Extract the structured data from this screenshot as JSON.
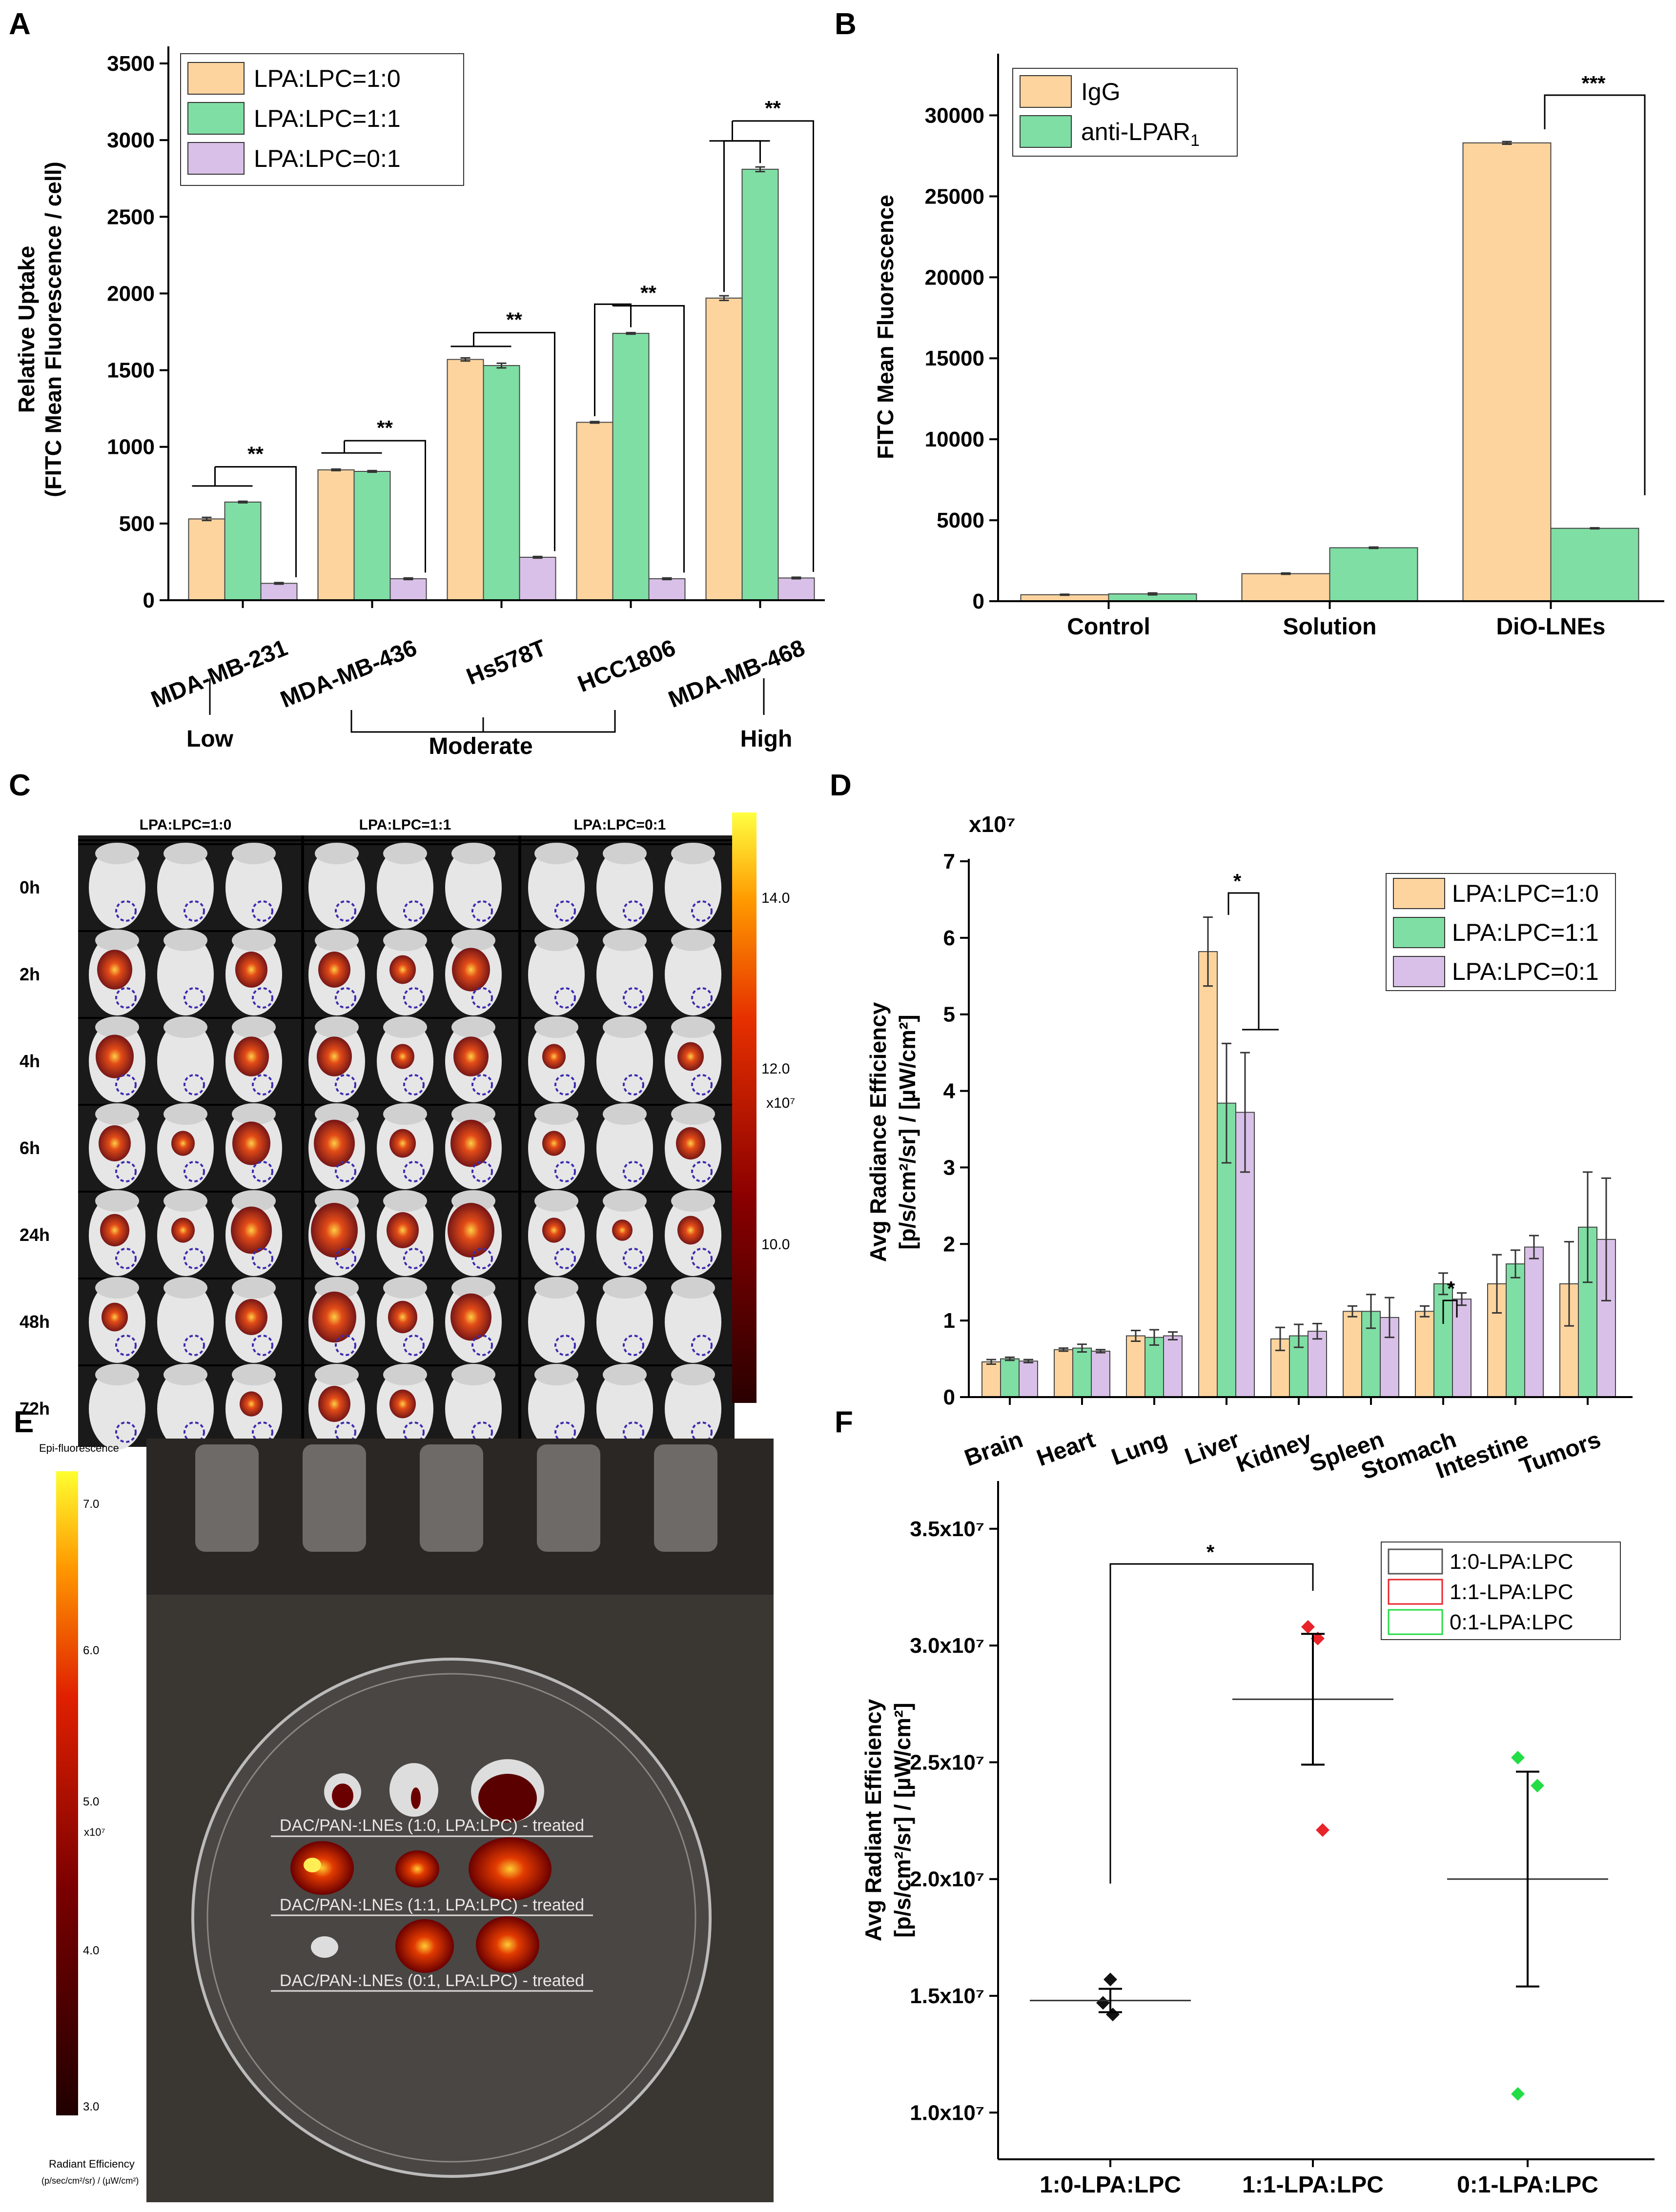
{
  "colors": {
    "orange": "#fdd49e",
    "green": "#7fdea4",
    "purple": "#d9c0e8",
    "black": "#000000",
    "red_marker": "#e8232a",
    "green_marker": "#22dd44"
  },
  "panels": {
    "A": {
      "label": "A"
    },
    "B": {
      "label": "B"
    },
    "C": {
      "label": "C",
      "groups": [
        "LPA:LPC=1:0",
        "LPA:LPC=1:1",
        "LPA:LPC=0:1"
      ],
      "times": [
        "0h",
        "2h",
        "4h",
        "6h",
        "24h",
        "48h",
        "72h"
      ],
      "scale_ticks": [
        "14.0",
        "12.0",
        "10.0"
      ],
      "scale_unit": "x10⁷"
    },
    "D": {
      "label": "D",
      "multiplier": "x10⁷"
    },
    "E": {
      "label": "E",
      "scale_title": "Epi-fluorescence",
      "scale_ticks": [
        "7.0",
        "6.0",
        "5.0",
        "4.0",
        "3.0"
      ],
      "scale_unit": "x10⁷",
      "scale_bottom_label": "Radiant Efficiency",
      "scale_bottom_units": "(p/sec/cm²/sr) / (µW/cm²)",
      "row_labels": [
        "DAC/PAN-:LNEs (1:0, LPA:LPC) - treated",
        "DAC/PAN-:LNEs (1:1, LPA:LPC) - treated",
        "DAC/PAN-:LNEs (0:1, LPA:LPC) - treated"
      ]
    },
    "F": {
      "label": "F"
    }
  },
  "chart_data": [
    {
      "id": "A",
      "type": "bar",
      "title": "",
      "ylabel_line1": "Relative Uptake",
      "ylabel_line2": "(FITC Mean Fluorescence / cell)",
      "ylim": [
        0,
        3500
      ],
      "yticks": [
        0,
        500,
        1000,
        1500,
        2000,
        2500,
        3000,
        3500
      ],
      "categories": [
        "MDA-MB-231",
        "MDA-MB-436",
        "Hs578T",
        "HCC1806",
        "MDA-MB-468"
      ],
      "series": [
        {
          "name": "LPA:LPC=1:0",
          "values": [
            530,
            850,
            1570,
            1160,
            1970
          ],
          "errors": [
            10,
            5,
            10,
            5,
            15
          ]
        },
        {
          "name": "LPA:LPC=1:1",
          "values": [
            640,
            840,
            1530,
            1740,
            2810
          ],
          "errors": [
            5,
            5,
            15,
            5,
            15
          ]
        },
        {
          "name": "LPA:LPC=0:1",
          "values": [
            110,
            140,
            280,
            140,
            145
          ],
          "errors": [
            5,
            5,
            5,
            5,
            5
          ]
        }
      ],
      "significance": [
        "**",
        "**",
        "**",
        "**",
        "**"
      ],
      "expression_groups": [
        "Low",
        "Moderate",
        "High"
      ]
    },
    {
      "id": "B",
      "type": "bar",
      "ylabel": "FITC Mean Fluorescence",
      "ylim": [
        0,
        32000
      ],
      "yticks": [
        0,
        5000,
        10000,
        15000,
        20000,
        25000,
        30000
      ],
      "categories": [
        "Control",
        "Solution",
        "DiO-LNEs"
      ],
      "series": [
        {
          "name": "IgG",
          "values": [
            400,
            1700,
            28300
          ],
          "errors": [
            30,
            40,
            80
          ]
        },
        {
          "name": "anti-LPAR1",
          "values": [
            450,
            3300,
            4500
          ],
          "errors": [
            60,
            40,
            30
          ]
        }
      ],
      "legend_text": {
        "igg": "IgG",
        "anti_prefix": "anti-LPAR",
        "anti_sub": "1"
      },
      "significance": "***"
    },
    {
      "id": "D",
      "type": "bar",
      "ylabel_line1": "Avg Radiance Efficiency",
      "ylabel_line2": "[p/s/cm²/sr] / [µW/cm²]",
      "ylim": [
        0,
        7
      ],
      "yticks": [
        0,
        1,
        2,
        3,
        4,
        5,
        6,
        7
      ],
      "categories": [
        "Brain",
        "Heart",
        "Lung",
        "Liver",
        "Kidney",
        "Spleen",
        "Stomach",
        "Intestine",
        "Tumors"
      ],
      "series": [
        {
          "name": "LPA:LPC=1:0",
          "values": [
            0.46,
            0.62,
            0.8,
            5.82,
            0.76,
            1.12,
            1.12,
            1.48,
            1.48
          ],
          "errors": [
            0.03,
            0.02,
            0.07,
            0.45,
            0.15,
            0.07,
            0.07,
            0.38,
            0.55
          ]
        },
        {
          "name": "LPA:LPC=1:1",
          "values": [
            0.5,
            0.64,
            0.78,
            3.84,
            0.8,
            1.12,
            1.48,
            1.74,
            2.22
          ],
          "errors": [
            0.02,
            0.05,
            0.1,
            0.78,
            0.15,
            0.22,
            0.14,
            0.18,
            0.72
          ]
        },
        {
          "name": "LPA:LPC=0:1",
          "values": [
            0.47,
            0.6,
            0.8,
            3.72,
            0.86,
            1.04,
            1.28,
            1.96,
            2.06
          ],
          "errors": [
            0.02,
            0.02,
            0.05,
            0.78,
            0.1,
            0.26,
            0.08,
            0.15,
            0.8
          ]
        }
      ],
      "significance": [
        "*",
        "*"
      ]
    },
    {
      "id": "F",
      "type": "scatter",
      "ylabel_line1": "Avg Radiant Efficiency",
      "ylabel_line2": "[p/s/cm²/sr] / [µW/cm²]",
      "ylim": [
        0.8,
        3.6
      ],
      "ytick_values": [
        1.0,
        1.5,
        2.0,
        2.5,
        3.0,
        3.5
      ],
      "ytick_labels": [
        "1.0x10⁷",
        "1.5x10⁷",
        "2.0x10⁷",
        "2.5x10⁷",
        "3.0x10⁷",
        "3.5x10⁷"
      ],
      "categories": [
        "1:0-LPA:LPC",
        "1:1-LPA:LPC",
        "0:1-LPA:LPC"
      ],
      "series": [
        {
          "name": "1:0-LPA:LPC",
          "points": [
            1.57,
            1.47,
            1.42
          ],
          "mean": 1.48,
          "error": 0.05
        },
        {
          "name": "1:1-LPA:LPC",
          "points": [
            3.08,
            3.03,
            2.21
          ],
          "mean": 2.77,
          "error": 0.28
        },
        {
          "name": "0:1-LPA:LPC",
          "points": [
            2.52,
            2.4,
            1.08
          ],
          "mean": 2.0,
          "error": 0.46
        }
      ],
      "significance": "*"
    }
  ]
}
